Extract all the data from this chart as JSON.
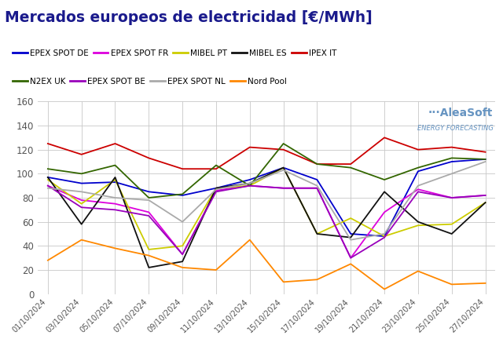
{
  "title": "Mercados europeos de electricidad [€/MWh]",
  "title_color": "#1a1a8c",
  "background_color": "#ffffff",
  "grid_color": "#c8c8c8",
  "ylim": [
    0,
    160
  ],
  "yticks": [
    0,
    20,
    40,
    60,
    80,
    100,
    120,
    140,
    160
  ],
  "dates": [
    "01/10/2024",
    "03/10/2024",
    "05/10/2024",
    "07/10/2024",
    "09/10/2024",
    "11/10/2024",
    "13/10/2024",
    "15/10/2024",
    "17/10/2024",
    "19/10/2024",
    "21/10/2024",
    "23/10/2024",
    "25/10/2024",
    "27/10/2024"
  ],
  "series": [
    {
      "label": "EPEX SPOT DE",
      "color": "#0000cc",
      "data": [
        97,
        92,
        93,
        85,
        82,
        88,
        95,
        105,
        95,
        50,
        48,
        102,
        110,
        112
      ]
    },
    {
      "label": "EPEX SPOT FR",
      "color": "#dd00dd",
      "data": [
        90,
        78,
        75,
        68,
        33,
        86,
        90,
        88,
        88,
        30,
        68,
        87,
        80,
        82
      ]
    },
    {
      "label": "MIBEL PT",
      "color": "#cccc00",
      "data": [
        95,
        75,
        95,
        37,
        40,
        88,
        90,
        105,
        50,
        63,
        48,
        57,
        58,
        76
      ]
    },
    {
      "label": "MIBEL ES",
      "color": "#111111",
      "data": [
        97,
        58,
        97,
        22,
        27,
        88,
        92,
        105,
        50,
        47,
        85,
        60,
        50,
        76
      ]
    },
    {
      "label": "IPEX IT",
      "color": "#cc0000",
      "data": [
        125,
        116,
        125,
        113,
        104,
        104,
        122,
        120,
        108,
        108,
        130,
        120,
        122,
        118
      ]
    },
    {
      "label": "N2EX UK",
      "color": "#336600",
      "data": [
        104,
        100,
        107,
        80,
        83,
        107,
        90,
        125,
        108,
        105,
        95,
        105,
        113,
        112
      ]
    },
    {
      "label": "EPEX SPOT BE",
      "color": "#9900bb",
      "data": [
        90,
        72,
        70,
        65,
        33,
        85,
        90,
        88,
        88,
        30,
        47,
        85,
        80,
        82
      ]
    },
    {
      "label": "EPEX SPOT NL",
      "color": "#aaaaaa",
      "data": [
        88,
        85,
        80,
        78,
        60,
        87,
        92,
        103,
        90,
        45,
        50,
        90,
        100,
        110
      ]
    },
    {
      "label": "Nord Pool",
      "color": "#ff8800",
      "data": [
        28,
        45,
        38,
        32,
        22,
        20,
        45,
        10,
        12,
        25,
        4,
        19,
        8,
        9
      ]
    }
  ],
  "legend_order": [
    0,
    1,
    2,
    3,
    4,
    5,
    6,
    7,
    8
  ],
  "watermark_text": "AleaSoft",
  "watermark_sub": "ENERGY FORECASTING",
  "watermark_color": "#5588bb"
}
